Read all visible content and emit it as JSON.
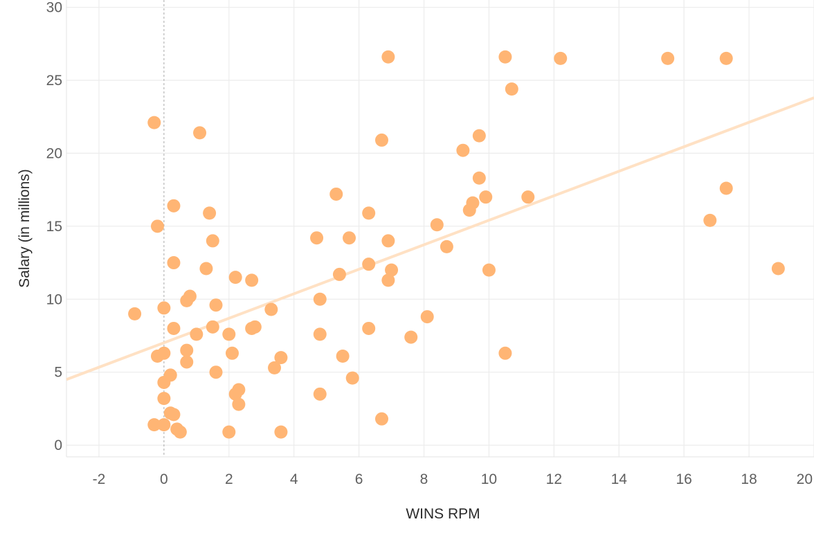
{
  "chart_data": {
    "type": "scatter",
    "title": "",
    "xlabel": "WINS RPM",
    "ylabel": "Salary (in millions)",
    "xlim": [
      -3,
      20
    ],
    "ylim": [
      -0.8,
      30.5
    ],
    "x_ticks": [
      -2,
      0,
      2,
      4,
      6,
      8,
      10,
      12,
      14,
      16,
      18,
      20
    ],
    "y_ticks": [
      0,
      5,
      10,
      15,
      20,
      25,
      30
    ],
    "grid": true,
    "reference_line_x": 0,
    "colors": {
      "point": "#ffb574",
      "trend": "#ffe1c4"
    },
    "trend_line": {
      "x": [
        -3,
        20
      ],
      "y": [
        4.5,
        23.8
      ]
    },
    "points": [
      {
        "x": 6.9,
        "y": 26.6
      },
      {
        "x": 10.5,
        "y": 26.6
      },
      {
        "x": 12.2,
        "y": 26.5
      },
      {
        "x": 15.5,
        "y": 26.5
      },
      {
        "x": 17.3,
        "y": 26.5
      },
      {
        "x": 10.7,
        "y": 24.4
      },
      {
        "x": -0.3,
        "y": 22.1
      },
      {
        "x": 1.1,
        "y": 21.4
      },
      {
        "x": 6.7,
        "y": 20.9
      },
      {
        "x": 9.7,
        "y": 21.2
      },
      {
        "x": 9.2,
        "y": 20.2
      },
      {
        "x": 9.7,
        "y": 18.3
      },
      {
        "x": 17.3,
        "y": 17.6
      },
      {
        "x": 5.3,
        "y": 17.2
      },
      {
        "x": 9.9,
        "y": 17.0
      },
      {
        "x": 11.2,
        "y": 17.0
      },
      {
        "x": 9.5,
        "y": 16.6
      },
      {
        "x": 9.4,
        "y": 16.1
      },
      {
        "x": 0.3,
        "y": 16.4
      },
      {
        "x": 1.4,
        "y": 15.9
      },
      {
        "x": 6.3,
        "y": 15.9
      },
      {
        "x": 16.8,
        "y": 15.4
      },
      {
        "x": -0.2,
        "y": 15.0
      },
      {
        "x": 8.4,
        "y": 15.1
      },
      {
        "x": 4.7,
        "y": 14.2
      },
      {
        "x": 5.7,
        "y": 14.2
      },
      {
        "x": 1.5,
        "y": 14.0
      },
      {
        "x": 6.9,
        "y": 14.0
      },
      {
        "x": 8.7,
        "y": 13.6
      },
      {
        "x": 0.3,
        "y": 12.5
      },
      {
        "x": 6.3,
        "y": 12.4
      },
      {
        "x": 1.3,
        "y": 12.1
      },
      {
        "x": 18.9,
        "y": 12.1
      },
      {
        "x": 7.0,
        "y": 12.0
      },
      {
        "x": 10.0,
        "y": 12.0
      },
      {
        "x": 5.4,
        "y": 11.7
      },
      {
        "x": 2.2,
        "y": 11.5
      },
      {
        "x": 2.7,
        "y": 11.3
      },
      {
        "x": 6.9,
        "y": 11.3
      },
      {
        "x": 0.8,
        "y": 10.2
      },
      {
        "x": 0.7,
        "y": 9.9
      },
      {
        "x": 4.8,
        "y": 10.0
      },
      {
        "x": 1.6,
        "y": 9.6
      },
      {
        "x": 0.0,
        "y": 9.4
      },
      {
        "x": 3.3,
        "y": 9.3
      },
      {
        "x": -0.9,
        "y": 9.0
      },
      {
        "x": 8.1,
        "y": 8.8
      },
      {
        "x": 1.5,
        "y": 8.1
      },
      {
        "x": 2.8,
        "y": 8.1
      },
      {
        "x": 0.3,
        "y": 8.0
      },
      {
        "x": 2.7,
        "y": 8.0
      },
      {
        "x": 6.3,
        "y": 8.0
      },
      {
        "x": 1.0,
        "y": 7.6
      },
      {
        "x": 2.0,
        "y": 7.6
      },
      {
        "x": 4.8,
        "y": 7.6
      },
      {
        "x": 7.6,
        "y": 7.4
      },
      {
        "x": 0.7,
        "y": 6.5
      },
      {
        "x": 0.0,
        "y": 6.3
      },
      {
        "x": 2.1,
        "y": 6.3
      },
      {
        "x": 10.5,
        "y": 6.3
      },
      {
        "x": -0.2,
        "y": 6.1
      },
      {
        "x": 5.5,
        "y": 6.1
      },
      {
        "x": 3.6,
        "y": 6.0
      },
      {
        "x": 0.7,
        "y": 5.7
      },
      {
        "x": 3.4,
        "y": 5.3
      },
      {
        "x": 1.6,
        "y": 5.0
      },
      {
        "x": 0.2,
        "y": 4.8
      },
      {
        "x": 5.8,
        "y": 4.6
      },
      {
        "x": 0.0,
        "y": 4.3
      },
      {
        "x": 2.3,
        "y": 3.8
      },
      {
        "x": 2.2,
        "y": 3.5
      },
      {
        "x": 4.8,
        "y": 3.5
      },
      {
        "x": 0.0,
        "y": 3.2
      },
      {
        "x": 2.3,
        "y": 2.8
      },
      {
        "x": 0.2,
        "y": 2.2
      },
      {
        "x": 0.3,
        "y": 2.1
      },
      {
        "x": 6.7,
        "y": 1.8
      },
      {
        "x": -0.3,
        "y": 1.4
      },
      {
        "x": 0.0,
        "y": 1.4
      },
      {
        "x": 0.4,
        "y": 1.1
      },
      {
        "x": 0.5,
        "y": 0.9
      },
      {
        "x": 2.0,
        "y": 0.9
      },
      {
        "x": 3.6,
        "y": 0.9
      }
    ]
  }
}
